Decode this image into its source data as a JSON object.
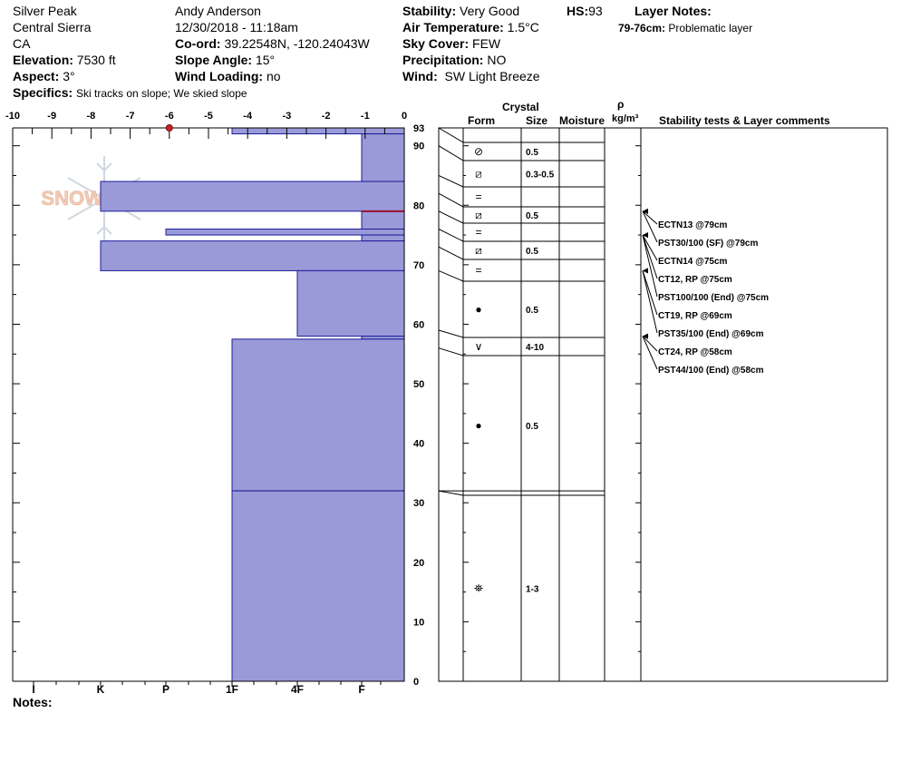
{
  "header": {
    "location": "Silver Peak",
    "range": "Central Sierra",
    "state": "CA",
    "elevation_label": "Elevation:",
    "elevation": "7530 ft",
    "aspect_label": "Aspect:",
    "aspect": "3°",
    "specifics_label": "Specifics:",
    "specifics": "Ski tracks on slope; We skied slope",
    "observer": "Andy Anderson",
    "datetime": "12/30/2018 - 11:18am",
    "coord_label": "Co-ord:",
    "coord": "39.22548N, -120.24043W",
    "slope_label": "Slope Angle:",
    "slope": "15°",
    "wind_loading_label": "Wind Loading:",
    "wind_loading": "no",
    "stability_label": "Stability:",
    "stability": "Very Good",
    "air_temp_label": "Air Temperature:",
    "air_temp": "1.5°C",
    "sky_label": "Sky Cover:",
    "sky": "FEW",
    "precip_label": "Precipitation:",
    "precip": "NO",
    "wind_label": "Wind:",
    "wind": "SW Light Breeze",
    "hs_label": "HS:",
    "hs": "93",
    "layer_notes_label": "Layer Notes:",
    "layer_note_range": "79-76cm:",
    "layer_note_text": "Problematic layer"
  },
  "logo_text": "SNOWPILOT",
  "notes_label": "Notes:",
  "table_headers": {
    "crystal": "Crystal",
    "form": "Form",
    "size": "Size",
    "moisture": "Moisture",
    "rho": "ρ",
    "density_unit": "kg/m³",
    "comments": "Stability tests & Layer comments"
  },
  "chart_data": {
    "type": "snow-profile",
    "height_unit": "cm",
    "hs": 93,
    "temperature_axis": {
      "ticks": [
        "-10",
        "-9",
        "-8",
        "-7",
        "-6",
        "-5",
        "-4",
        "-3",
        "-2",
        "-1",
        "0"
      ],
      "range": [
        -10,
        0
      ]
    },
    "height_axis": {
      "ticks": [
        "0",
        "10",
        "20",
        "30",
        "40",
        "50",
        "60",
        "70",
        "80",
        "90",
        "93"
      ],
      "range": [
        0,
        93
      ]
    },
    "hardness_axis": [
      "I",
      "K",
      "P",
      "1F",
      "4F",
      "F"
    ],
    "temperature_points": [
      {
        "height": 93,
        "temp": -6
      }
    ],
    "hardness_layers": [
      {
        "top": 93,
        "bottom": 92,
        "hardness": "1F"
      },
      {
        "top": 92,
        "bottom": 84,
        "hardness": "F"
      },
      {
        "top": 84,
        "bottom": 79,
        "hardness": "K"
      },
      {
        "top": 79,
        "bottom": 76,
        "hardness": "F"
      },
      {
        "top": 76,
        "bottom": 75,
        "hardness": "P+"
      },
      {
        "top": 75,
        "bottom": 74,
        "hardness": "F"
      },
      {
        "top": 74,
        "bottom": 69,
        "hardness": "K"
      },
      {
        "top": 69,
        "bottom": 58,
        "hardness": "4F"
      },
      {
        "top": 58,
        "bottom": 57.5,
        "hardness": "F"
      },
      {
        "top": 57.5,
        "bottom": 32,
        "hardness": "1F"
      },
      {
        "top": 32,
        "bottom": 0,
        "hardness": "1F"
      }
    ],
    "problem_line_height": 79,
    "crystal_rows": [
      {
        "top": 93,
        "bottom": 90,
        "form": "⊘",
        "size": "0.5"
      },
      {
        "top": 90,
        "bottom": 85,
        "form": "⧄",
        "size": "0.3-0.5"
      },
      {
        "top": 85,
        "bottom": 82,
        "form": "=",
        "size": ""
      },
      {
        "top": 82,
        "bottom": 79,
        "form": "⧄",
        "size": "0.5"
      },
      {
        "top": 79,
        "bottom": 76,
        "form": "=",
        "size": ""
      },
      {
        "top": 76,
        "bottom": 73,
        "form": "⧄",
        "size": "0.5"
      },
      {
        "top": 73,
        "bottom": 69,
        "form": "=",
        "size": ""
      },
      {
        "top": 69,
        "bottom": 59,
        "form": "●",
        "size": "0.5"
      },
      {
        "top": 59,
        "bottom": 56,
        "form": "∨",
        "size": "4-10"
      },
      {
        "top": 56,
        "bottom": 32,
        "form": "●",
        "size": "0.5"
      },
      {
        "top": 32,
        "bottom": 0,
        "form": "⛯",
        "size": "1-3"
      }
    ],
    "stability_tests": [
      {
        "label": "ECTN13 @79cm",
        "height": 79
      },
      {
        "label": "PST30/100 (SF) @79cm",
        "height": 79
      },
      {
        "label": "ECTN14 @75cm",
        "height": 75
      },
      {
        "label": "CT12, RP @75cm",
        "height": 75
      },
      {
        "label": "PST100/100 (End) @75cm",
        "height": 75
      },
      {
        "label": "CT19, RP @69cm",
        "height": 69
      },
      {
        "label": "PST35/100 (End) @69cm",
        "height": 69
      },
      {
        "label": "CT24, RP @58cm",
        "height": 58
      },
      {
        "label": "PST44/100 (End) @58cm",
        "height": 58
      }
    ]
  }
}
